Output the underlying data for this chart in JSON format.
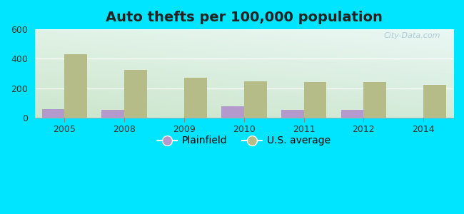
{
  "title": "Auto thefts per 100,000 population",
  "years": [
    2005,
    2008,
    2009,
    2010,
    2011,
    2012,
    2014
  ],
  "plainfield": [
    60,
    55,
    0,
    75,
    55,
    52,
    0
  ],
  "us_average": [
    430,
    325,
    270,
    248,
    242,
    240,
    222
  ],
  "plainfield_color": "#b399cc",
  "us_avg_color": "#b5bc87",
  "ylim": [
    0,
    600
  ],
  "yticks": [
    0,
    200,
    400,
    600
  ],
  "bar_width": 0.38,
  "bg_color_topleft": "#d8f0d8",
  "bg_color_topright": "#e8f8f8",
  "bg_color_bottom": "#c8e8c8",
  "outer_bg": "#00e5ff",
  "title_fontsize": 14,
  "tick_fontsize": 9,
  "legend_fontsize": 10,
  "watermark": "City-Data.com",
  "title_color": "#222222"
}
